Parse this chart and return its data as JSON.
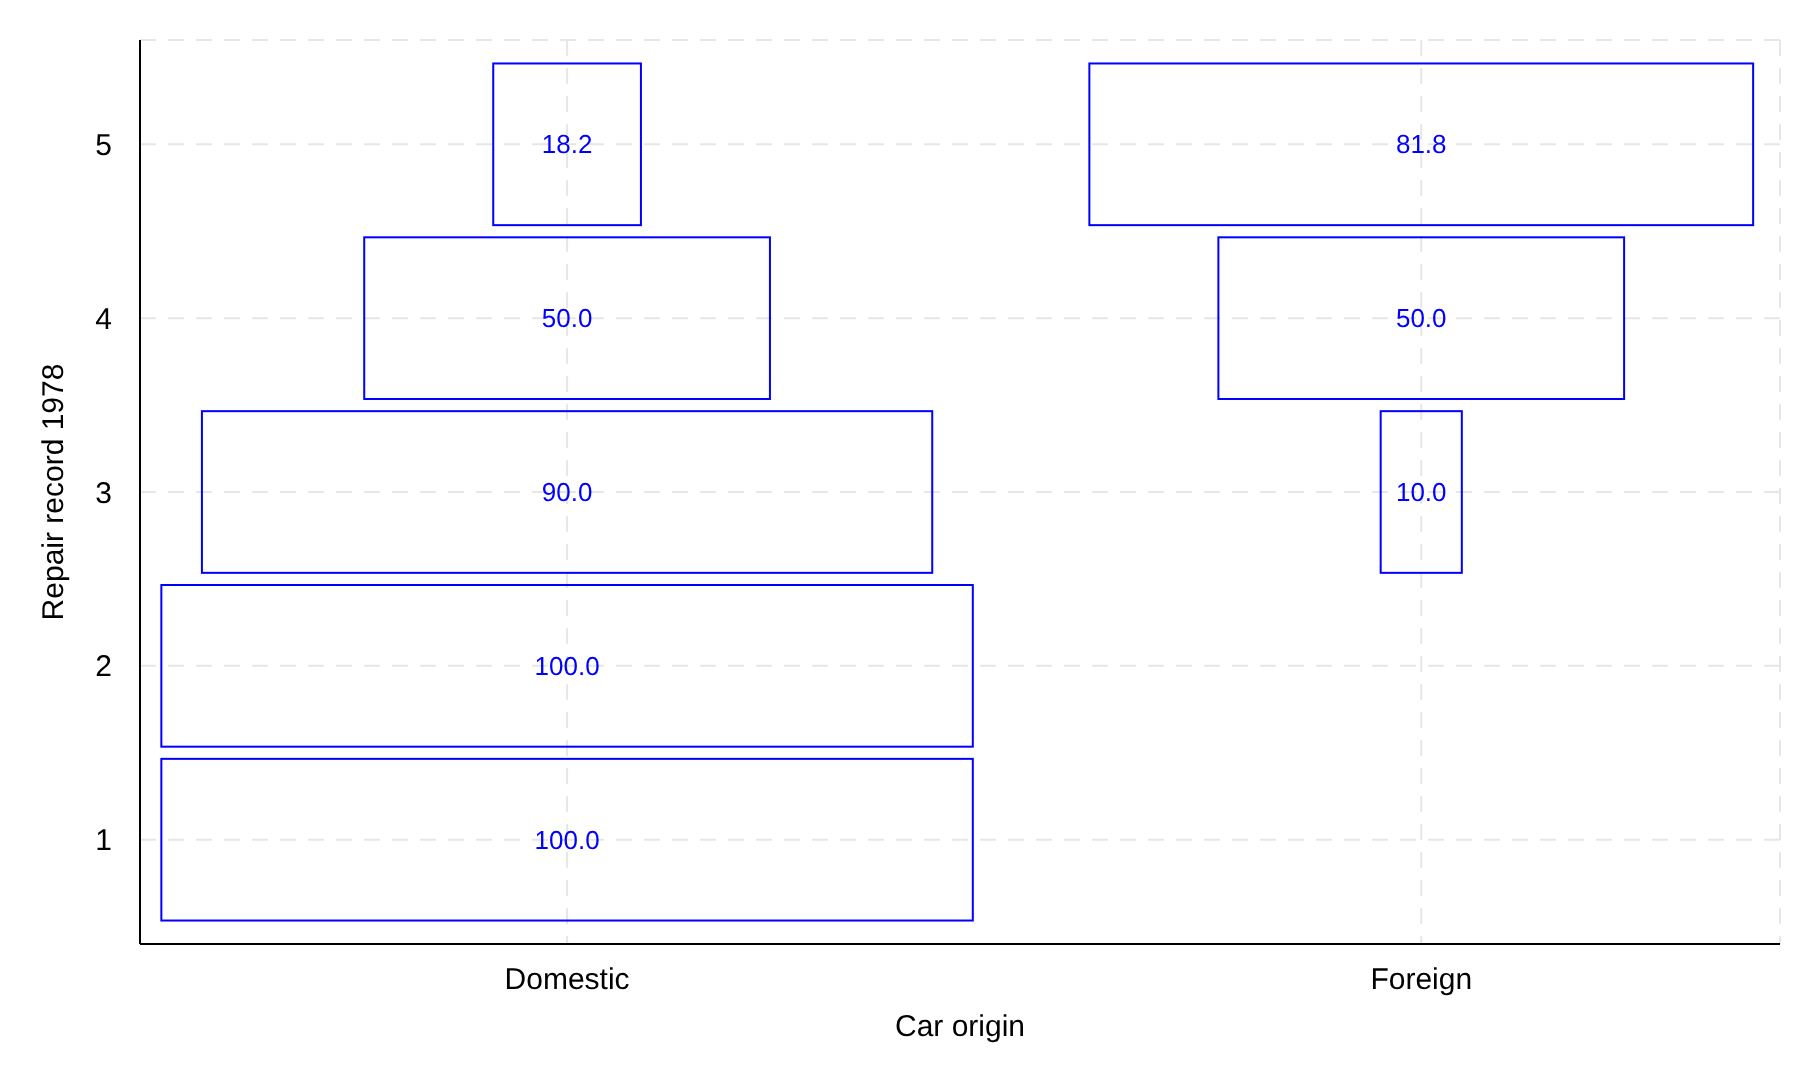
{
  "chart_data": {
    "type": "heatmap",
    "xlabel": "Car origin",
    "ylabel": "Repair record 1978",
    "categories": [
      "Domestic",
      "Foreign"
    ],
    "y_categories": [
      "5",
      "4",
      "3",
      "2",
      "1"
    ],
    "cells": [
      [
        18.2,
        81.8
      ],
      [
        50.0,
        50.0
      ],
      [
        90.0,
        10.0
      ],
      [
        100.0,
        null
      ],
      [
        100.0,
        null
      ]
    ],
    "cell_labels": [
      [
        "18.2",
        "81.8"
      ],
      [
        "50.0",
        "50.0"
      ],
      [
        "90.0",
        "10.0"
      ],
      [
        "100.0",
        null
      ],
      [
        "100.0",
        null
      ]
    ],
    "color": "#0000ff",
    "grid": true
  }
}
